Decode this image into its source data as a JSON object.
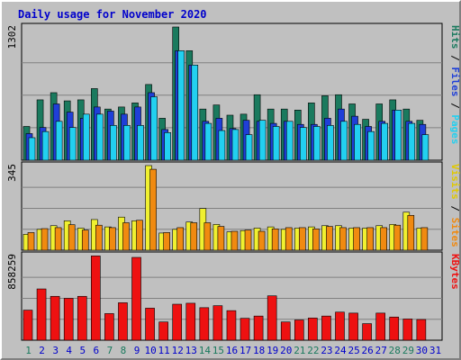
{
  "chart_data": {
    "type": "bar",
    "title": "Daily usage for November 2020",
    "categories": [
      "1",
      "2",
      "3",
      "4",
      "5",
      "6",
      "7",
      "8",
      "9",
      "10",
      "11",
      "12",
      "13",
      "14",
      "15",
      "16",
      "17",
      "18",
      "19",
      "20",
      "21",
      "22",
      "23",
      "24",
      "25",
      "26",
      "27",
      "28",
      "29",
      "30",
      "31"
    ],
    "weekend_days": [
      "1",
      "7",
      "8",
      "14",
      "15",
      "21",
      "22",
      "28",
      "29"
    ],
    "panels": [
      {
        "id": "requests",
        "max_label": "1302",
        "ymax": 1302,
        "grid": true,
        "series": [
          {
            "name": "Hits",
            "color": "#1a7a5e",
            "values": [
              330,
              590,
              660,
              580,
              590,
              700,
              500,
              520,
              560,
              740,
              410,
              1302,
              1070,
              500,
              540,
              440,
              450,
              640,
              500,
              500,
              490,
              560,
              630,
              640,
              550,
              400,
              550,
              590,
              500,
              390,
              0
            ]
          },
          {
            "name": "Files",
            "color": "#1f3fd8",
            "values": [
              260,
              320,
              550,
              470,
              410,
              520,
              480,
              450,
              520,
              660,
              300,
              1070,
              930,
              380,
              410,
              310,
              390,
              380,
              360,
              380,
              350,
              350,
              410,
              500,
              430,
              330,
              380,
              490,
              380,
              350,
              0
            ]
          },
          {
            "name": "Pages",
            "color": "#22d0f0",
            "values": [
              220,
              280,
              380,
              320,
              450,
              450,
              340,
              340,
              340,
              620,
              270,
              1070,
              930,
              360,
              290,
              300,
              250,
              390,
              330,
              380,
              320,
              330,
              340,
              380,
              350,
              280,
              360,
              490,
              360,
              250,
              0
            ]
          }
        ],
        "axis_labels": [
          {
            "text": "Hits",
            "color": "#1a7a5e"
          },
          {
            "text": " / ",
            "color": "#000000"
          },
          {
            "text": "Files",
            "color": "#1f3fd8"
          },
          {
            "text": " / ",
            "color": "#000000"
          },
          {
            "text": "Pages",
            "color": "#22d0f0"
          }
        ]
      },
      {
        "id": "visits",
        "max_label": "345",
        "ymax": 345,
        "grid": true,
        "series": [
          {
            "name": "Visits",
            "color": "#f0f030",
            "values": [
              65,
              85,
              100,
              120,
              90,
              125,
              95,
              135,
              120,
              345,
              70,
              85,
              115,
              170,
              105,
              75,
              80,
              90,
              95,
              85,
              90,
              95,
              100,
              100,
              90,
              90,
              100,
              105,
              155,
              90,
              0
            ]
          },
          {
            "name": "Sites",
            "color": "#f08a10",
            "values": [
              72,
              88,
              92,
              104,
              82,
              102,
              92,
              112,
              122,
              330,
              72,
              92,
              112,
              112,
              97,
              77,
              82,
              77,
              87,
              92,
              92,
              87,
              97,
              92,
              92,
              92,
              92,
              102,
              142,
              92,
              0
            ]
          }
        ],
        "axis_labels": [
          {
            "text": "Visits",
            "color": "#e0c800"
          },
          {
            "text": " / ",
            "color": "#000000"
          },
          {
            "text": "Sites",
            "color": "#f08a10"
          }
        ]
      },
      {
        "id": "kbytes",
        "max_label": "858259",
        "ymax": 858259,
        "grid": true,
        "series": [
          {
            "name": "KBytes",
            "color": "#ee1111",
            "values": [
              305000,
              520000,
              445000,
              425000,
              445000,
              855000,
              270000,
              380000,
              840000,
              325000,
              185000,
              365000,
              375000,
              330000,
              350000,
              300000,
              222000,
              245000,
              450000,
              185000,
              205000,
              225000,
              245000,
              285000,
              275000,
              168000,
              275000,
              235000,
              215000,
              210000,
              0
            ]
          }
        ],
        "axis_labels": [
          {
            "text": "KBytes",
            "color": "#ee1111"
          }
        ]
      }
    ],
    "xlabel": "",
    "ylabel": ""
  },
  "colors": {
    "background": "#c0c0c0",
    "plot_background": "#c0c0c0",
    "title": "#0000cc",
    "weekday_label": "#0000cc",
    "weekend_label": "#1a7a5e",
    "grid": "#808080",
    "border": "#000000"
  }
}
